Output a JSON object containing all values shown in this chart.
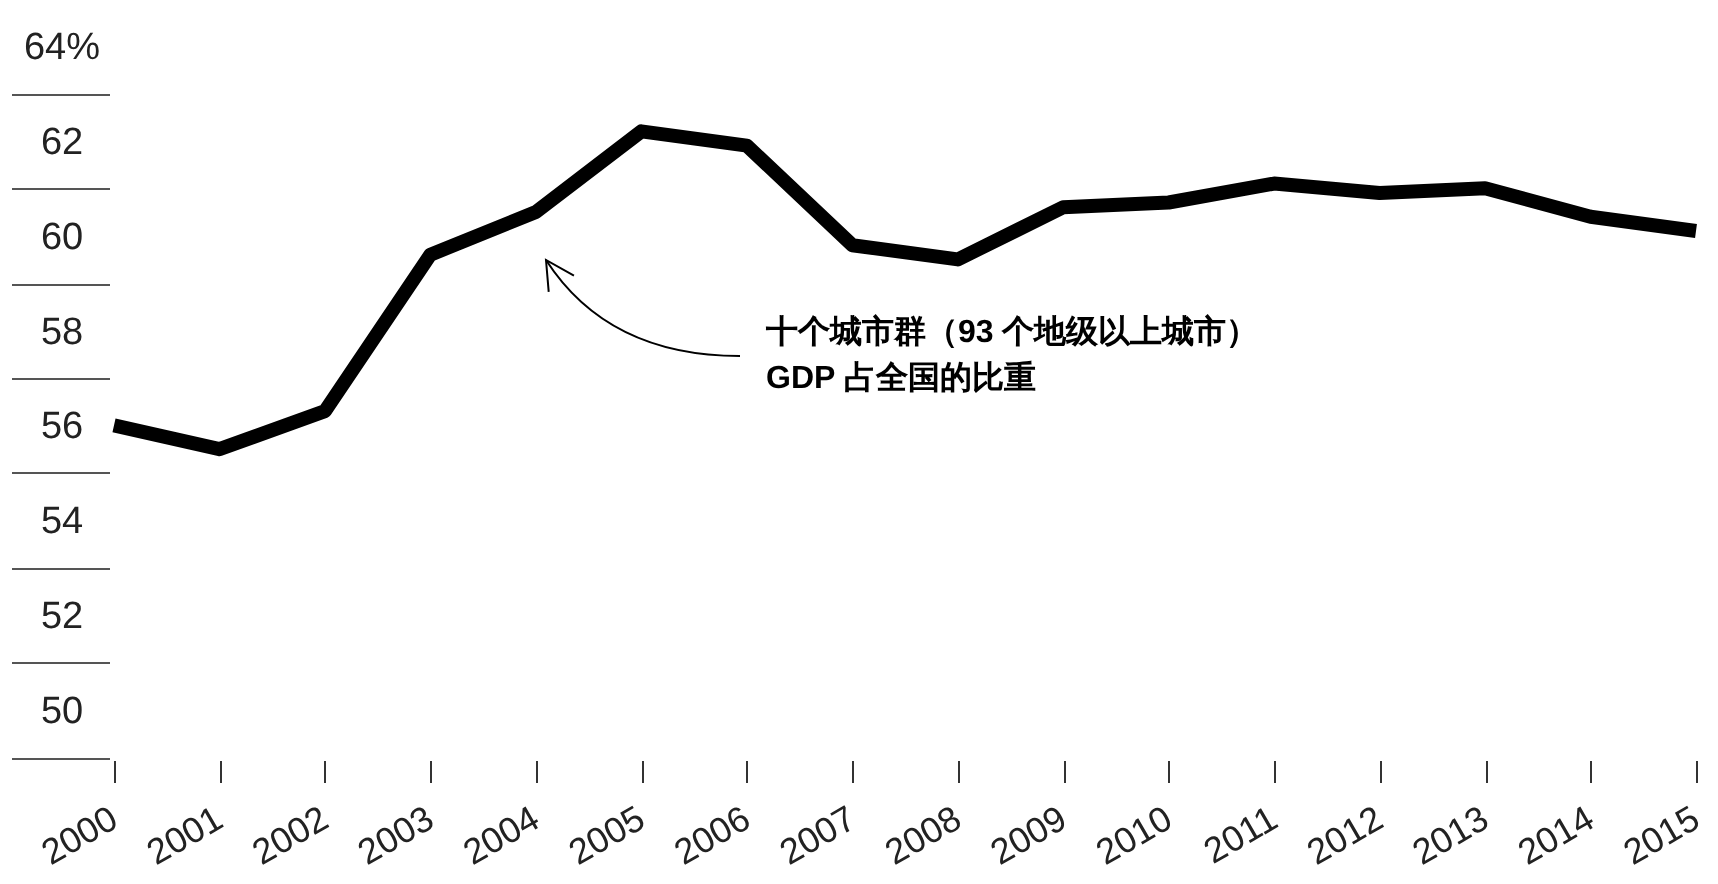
{
  "chart_data": {
    "type": "line",
    "categories": [
      "2000",
      "2001",
      "2002",
      "2003",
      "2004",
      "2005",
      "2006",
      "2007",
      "2008",
      "2009",
      "2010",
      "2011",
      "2012",
      "2013",
      "2014",
      "2015"
    ],
    "series": [
      {
        "color": "#000000",
        "values": [
          56.0,
          55.5,
          56.3,
          59.6,
          60.5,
          62.2,
          61.9,
          59.8,
          59.5,
          60.6,
          60.7,
          61.1,
          60.9,
          61.0,
          60.4,
          60.1
        ]
      }
    ],
    "ylim": [
      50,
      64
    ],
    "yticks": [
      50,
      52,
      54,
      56,
      58,
      60,
      62,
      {
        "value": 64,
        "label": "64%"
      }
    ],
    "line_style": "solid",
    "annotations": [
      "十个城市群（93 个地级以上城市）\nGDP 占全国的比重"
    ]
  }
}
